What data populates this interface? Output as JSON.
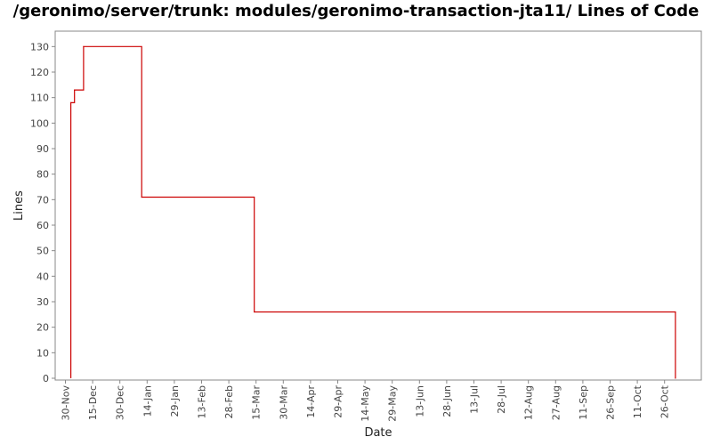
{
  "chart_data": {
    "type": "line",
    "title": "/geronimo/server/trunk: modules/geronimo-transaction-jta11/ Lines of Code",
    "xlabel": "Date",
    "ylabel": "Lines",
    "ylim": [
      0,
      135
    ],
    "yticks": [
      0,
      10,
      20,
      30,
      40,
      50,
      60,
      70,
      80,
      90,
      100,
      110,
      120,
      130
    ],
    "xticks": [
      "30-Nov",
      "15-Dec",
      "30-Dec",
      "14-Jan",
      "29-Jan",
      "13-Feb",
      "28-Feb",
      "15-Mar",
      "30-Mar",
      "14-Apr",
      "29-Apr",
      "14-May",
      "29-May",
      "13-Jun",
      "28-Jun",
      "13-Jul",
      "28-Jul",
      "12-Aug",
      "27-Aug",
      "11-Sep",
      "26-Sep",
      "11-Oct",
      "26-Oct"
    ],
    "grid": false,
    "legend": "none",
    "line_color": "#cc0000",
    "step": true,
    "series": [
      {
        "x": [
          "2006-12-03",
          "2006-12-05",
          "2006-12-10",
          "2007-01-11",
          "2007-03-14",
          "2007-11-01",
          "2007-11-01"
        ],
        "y": [
          108,
          113,
          130,
          71,
          26,
          26,
          0
        ]
      }
    ]
  }
}
